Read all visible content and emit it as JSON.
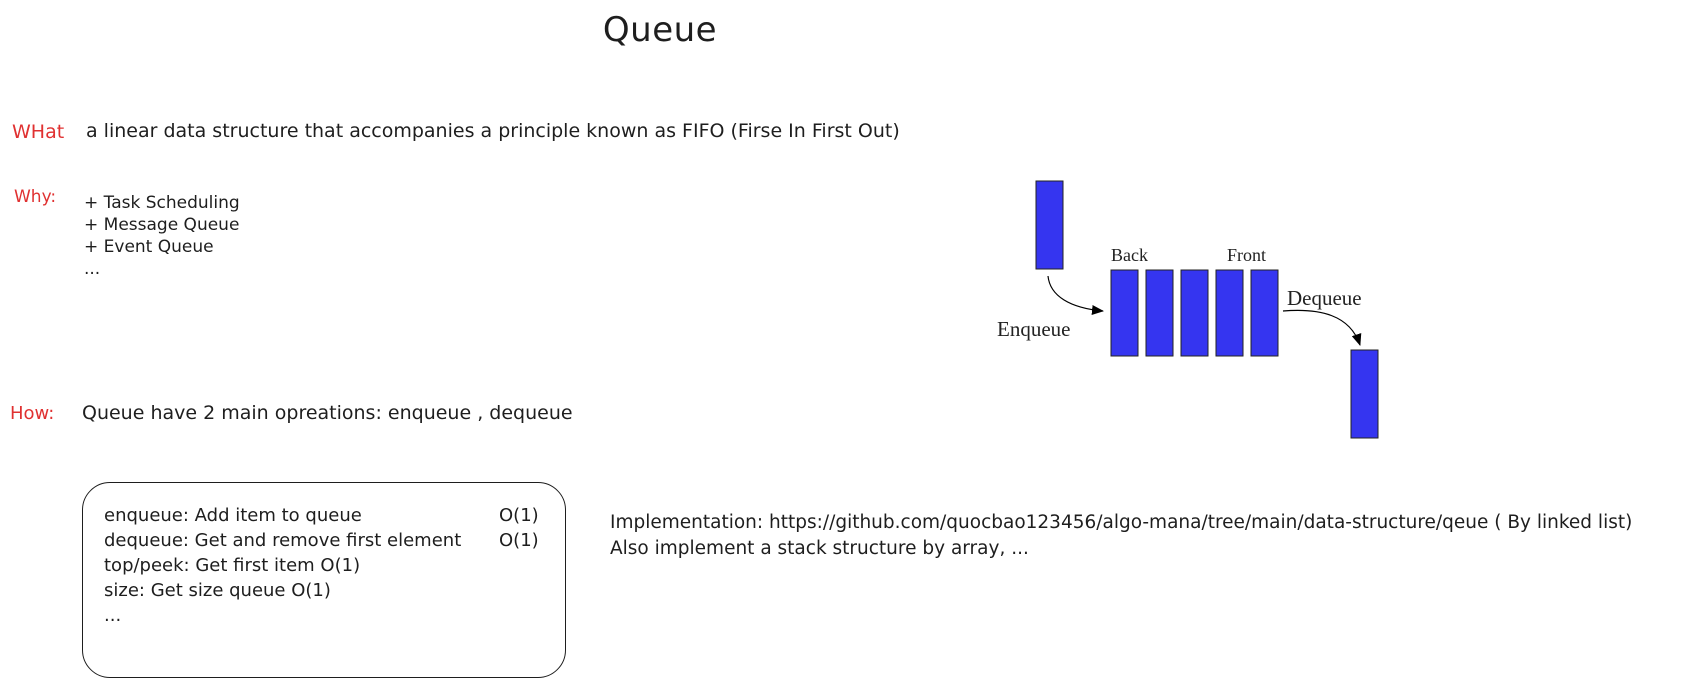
{
  "title": "Queue",
  "what": {
    "label": "WHat",
    "text": "a linear data structure that accompanies a principle known as FIFO (Firse In First Out)"
  },
  "why": {
    "label": "Why:",
    "items": [
      "+ Task Scheduling",
      "+ Message Queue",
      "+ Event Queue",
      "..."
    ]
  },
  "how": {
    "label": "How:",
    "text": "Queue have 2 main opreations: enqueue , dequeue"
  },
  "operations": [
    {
      "text": "enqueue: Add item to queue",
      "cost": "O(1)"
    },
    {
      "text": "dequeue: Get and remove first element",
      "cost": "O(1)"
    },
    {
      "text": "top/peek: Get first item O(1)",
      "cost": ""
    },
    {
      "text": "size: Get size queue O(1)",
      "cost": ""
    },
    {
      "text": "...",
      "cost": ""
    }
  ],
  "implementation": {
    "line1": "Implementation: https://github.com/quocbao123456/algo-mana/tree/main/data-structure/qeue ( By linked list)",
    "line2": "Also implement a stack structure by array, ..."
  },
  "diagram": {
    "back_label": "Back",
    "front_label": "Front",
    "enqueue_label": "Enqueue",
    "dequeue_label": "Dequeue",
    "queue_length": 5,
    "block_color": "#3535f0"
  },
  "colors": {
    "accent_red": "#e03131",
    "text": "#1e1e1e",
    "block": "#3535f0"
  }
}
